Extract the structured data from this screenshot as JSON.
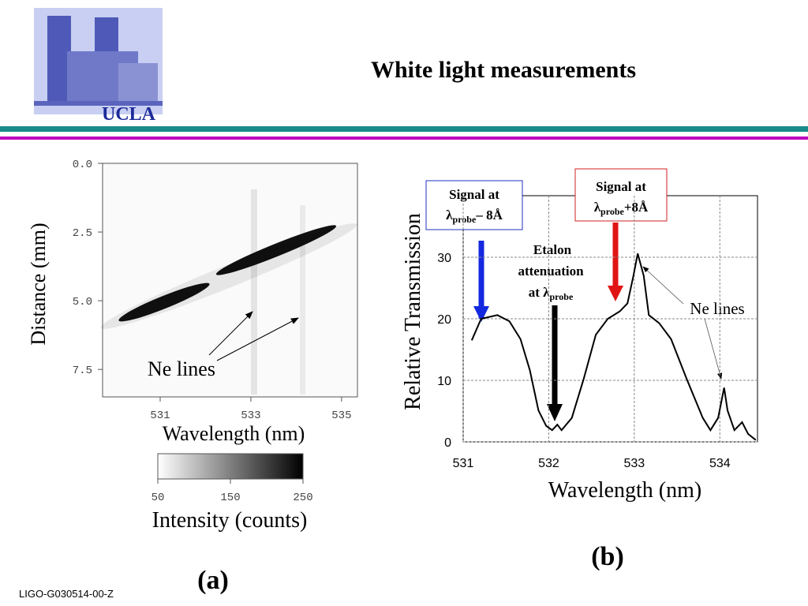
{
  "slide": {
    "title": "White light measurements",
    "logo": "UCLA",
    "footer": "LIGO-G030514-00-Z"
  },
  "chart_data": [
    {
      "type": "image",
      "label": "(a)",
      "xlabel": "Wavelength (nm)",
      "ylabel": "Distance (mm)",
      "xlim": [
        529.73,
        535.35
      ],
      "xticks": [
        531,
        533,
        535
      ],
      "ylim": [
        0,
        8.5
      ],
      "yticks": [
        {
          "value": 0,
          "label": "0.0"
        },
        2.5,
        {
          "value": 5,
          "label": "5.0"
        },
        7.5
      ],
      "annotation": "Ne lines",
      "colorbar": {
        "label": "Intensity (counts)",
        "lim": [
          50,
          250
        ],
        "ticks": [
          50,
          150,
          250
        ]
      }
    },
    {
      "type": "line",
      "label": "(b)",
      "xlabel": "Wavelength (nm)",
      "ylabel": "Relative Transmission",
      "xlim": [
        531,
        534.44
      ],
      "xticks": [
        531,
        532,
        533,
        534
      ],
      "ylim": [
        0,
        40
      ],
      "yticks": [
        0,
        10,
        20,
        30
      ],
      "grid": true,
      "color": "#000000",
      "x": [
        531.1,
        531.21,
        531.4,
        531.54,
        531.67,
        531.78,
        531.88,
        531.97,
        532.04,
        532.1,
        532.15,
        532.27,
        532.41,
        532.55,
        532.69,
        532.83,
        532.92,
        532.99,
        533.04,
        533.11,
        533.17,
        533.29,
        533.43,
        533.61,
        533.8,
        533.89,
        533.98,
        534.05,
        534.09,
        534.17,
        534.26,
        534.33,
        534.42
      ],
      "values": [
        16.5,
        20,
        20.6,
        19.6,
        16.7,
        11.6,
        5.1,
        2.6,
        1.9,
        2.8,
        1.9,
        3.9,
        10.3,
        17.4,
        20,
        21.2,
        22.5,
        27,
        30.6,
        27,
        20.6,
        19.3,
        16.7,
        10.3,
        3.9,
        1.9,
        3.9,
        8.8,
        5.1,
        1.9,
        3.2,
        1.3,
        0.3
      ],
      "annotations": {
        "signal_low": [
          "Signal at",
          "λ",
          "probe",
          "– 8Å"
        ],
        "signal_high": [
          "Signal at",
          "λ",
          "probe",
          "+8Å"
        ],
        "etalon": [
          "Etalon",
          "attenuation",
          "at λ",
          "probe"
        ],
        "ne": "Ne lines"
      }
    }
  ]
}
